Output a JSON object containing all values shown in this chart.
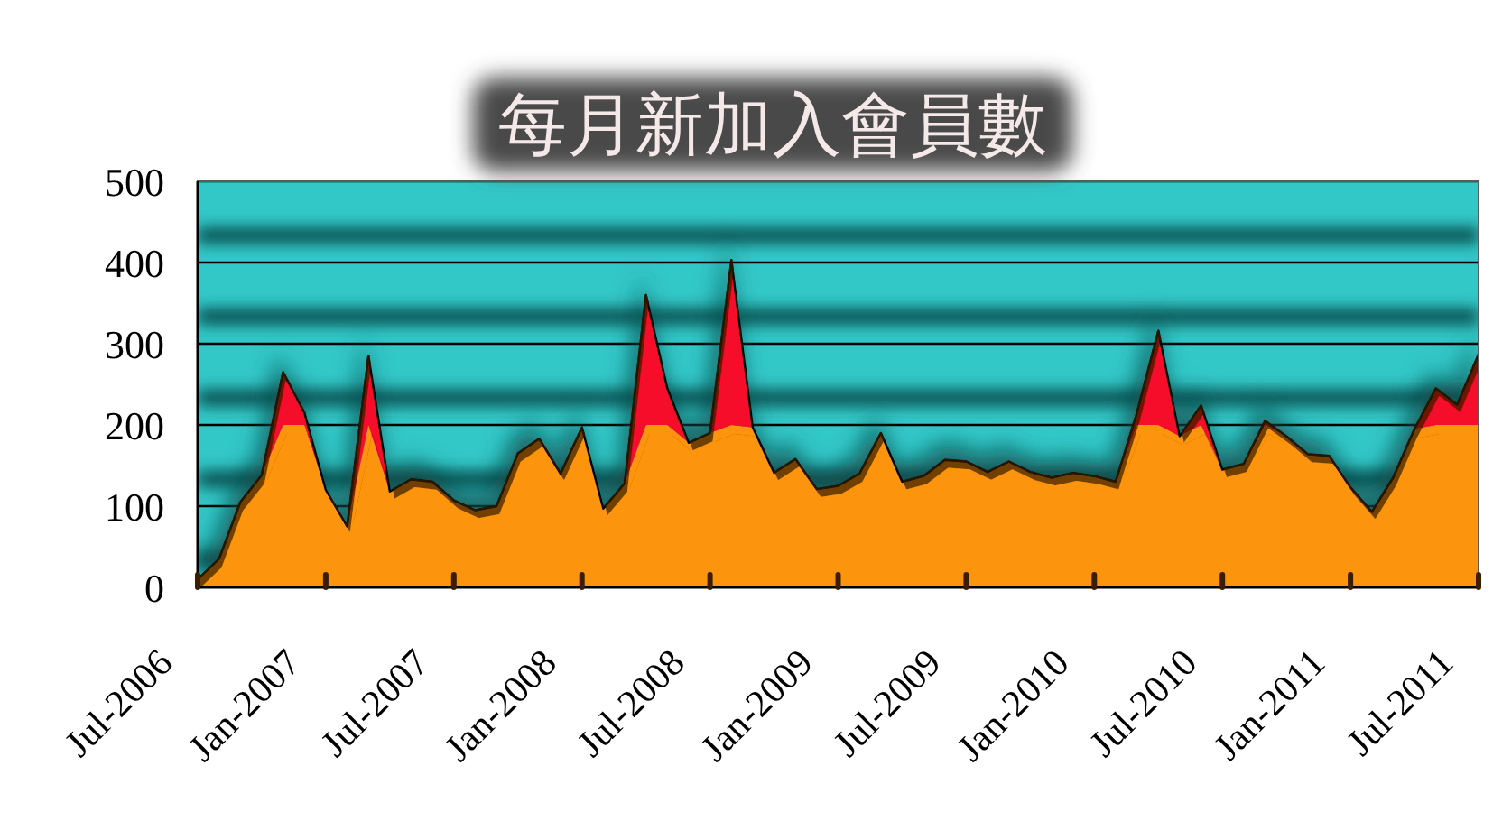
{
  "chart_data": {
    "type": "area",
    "title": "每月新加入會員數",
    "stacked": true,
    "grid": "y",
    "x": [
      "2006-07",
      "2006-08",
      "2006-09",
      "2006-10",
      "2006-11",
      "2006-12",
      "2007-01",
      "2007-02",
      "2007-03",
      "2007-04",
      "2007-05",
      "2007-06",
      "2007-07",
      "2007-08",
      "2007-09",
      "2007-10",
      "2007-11",
      "2007-12",
      "2008-01",
      "2008-02",
      "2008-03",
      "2008-04",
      "2008-05",
      "2008-06",
      "2008-07",
      "2008-08",
      "2008-09",
      "2008-10",
      "2008-11",
      "2008-12",
      "2009-01",
      "2009-02",
      "2009-03",
      "2009-04",
      "2009-05",
      "2009-06",
      "2009-07",
      "2009-08",
      "2009-09",
      "2009-10",
      "2009-11",
      "2009-12",
      "2010-01",
      "2010-02",
      "2010-03",
      "2010-04",
      "2010-05",
      "2010-06",
      "2010-07",
      "2010-08",
      "2010-09",
      "2010-10",
      "2010-11",
      "2010-12",
      "2011-01",
      "2011-02",
      "2011-03",
      "2011-04",
      "2011-05",
      "2011-06",
      "2011-07"
    ],
    "series": [
      {
        "color": "#fc9410",
        "values": [
          10,
          35,
          105,
          138,
          200,
          200,
          120,
          75,
          200,
          118,
          133,
          130,
          107,
          95,
          100,
          165,
          183,
          140,
          197,
          97,
          128,
          200,
          200,
          178,
          190,
          200,
          197,
          141,
          158,
          121,
          125,
          140,
          190,
          130,
          137,
          157,
          155,
          142,
          155,
          142,
          135,
          141,
          137,
          130,
          200,
          200,
          186,
          200,
          145,
          152,
          200,
          186,
          164,
          162,
          123,
          93,
          135,
          195,
          200,
          200,
          200
        ]
      },
      {
        "color": "#f5102a",
        "values": [
          0,
          0,
          0,
          0,
          65,
          15,
          0,
          0,
          85,
          0,
          0,
          0,
          0,
          0,
          0,
          0,
          0,
          0,
          0,
          0,
          0,
          160,
          45,
          0,
          0,
          203,
          0,
          0,
          0,
          0,
          0,
          0,
          0,
          0,
          0,
          0,
          0,
          0,
          0,
          0,
          0,
          0,
          0,
          0,
          15,
          116,
          0,
          24,
          0,
          0,
          5,
          0,
          0,
          0,
          0,
          0,
          0,
          0,
          45,
          25,
          87
        ]
      }
    ],
    "xlim": [
      "2006-07",
      "2011-07"
    ],
    "xticks": [
      {
        "value": "2006-07",
        "label": "Jul-2006"
      },
      {
        "value": "2007-01",
        "label": "Jan-2007"
      },
      {
        "value": "2007-07",
        "label": "Jul-2007"
      },
      {
        "value": "2008-01",
        "label": "Jan-2008"
      },
      {
        "value": "2008-07",
        "label": "Jul-2008"
      },
      {
        "value": "2009-01",
        "label": "Jan-2009"
      },
      {
        "value": "2009-07",
        "label": "Jul-2009"
      },
      {
        "value": "2010-01",
        "label": "Jan-2010"
      },
      {
        "value": "2010-07",
        "label": "Jul-2010"
      },
      {
        "value": "2011-01",
        "label": "Jan-2011"
      },
      {
        "value": "2011-07",
        "label": "Jul-2011"
      }
    ],
    "ylim": [
      0,
      500
    ],
    "yticks": [
      0,
      100,
      200,
      300,
      400,
      500
    ]
  }
}
